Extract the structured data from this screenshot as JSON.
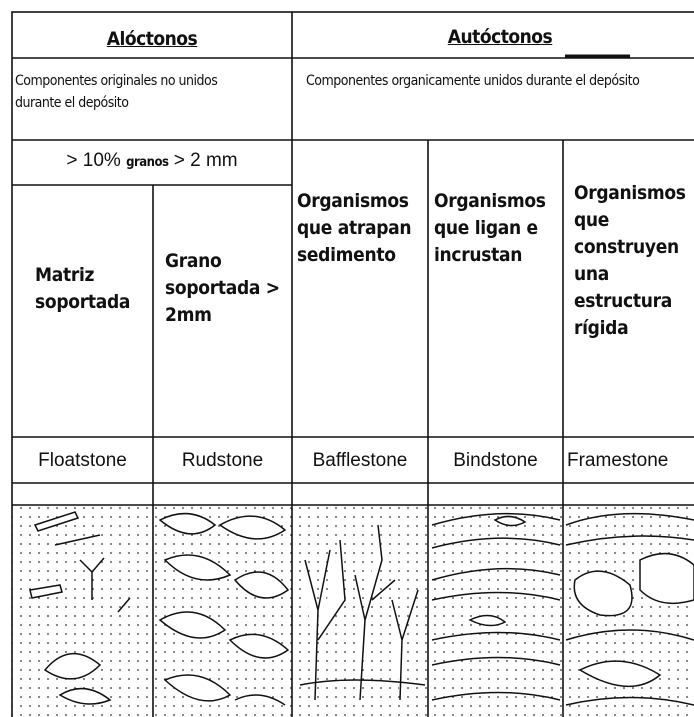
{
  "header": {
    "allochthonous": "Alóctonos",
    "autochthonous": "Autóctonos"
  },
  "descriptions": {
    "allochthonous": "Componentes originales no unidos durante el depósito",
    "autochthonous": "Componentes organicamente unidos durante el depósito"
  },
  "grain_note": {
    "before": "> 10%",
    "emphasis": "granos",
    "after": "> 2 mm"
  },
  "types": [
    {
      "criterion": "Matriz soportada",
      "name": "Floatstone"
    },
    {
      "criterion": "Grano soportada > 2mm",
      "name": "Rudstone"
    },
    {
      "criterion": "Organismos que atrapan sedimento",
      "name": "Bafflestone"
    },
    {
      "criterion": "Organismos que ligan e incrustan",
      "name": "Bindstone"
    },
    {
      "criterion": "Organismos que construyen una estructura rígida",
      "name": "Framestone"
    }
  ]
}
